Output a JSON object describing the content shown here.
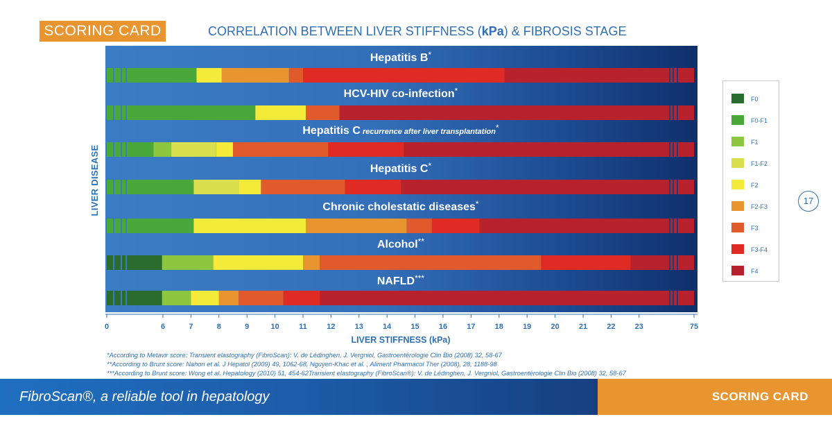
{
  "header": {
    "tag": "SCORING CARD",
    "title_prefix": "CORRELATION BETWEEN LIVER STIFFNESS (",
    "title_unit": "kPa",
    "title_suffix": ") & FIBROSIS STAGE"
  },
  "page_number": "17",
  "footnotes": [
    "*According to Metavir score: Transient elastography (FibroScan): V. de Lédinghen, J. Vergniol, Gastroentérologie Clin Bio (2008) 32, 58-67",
    "**According to Brunt score: Nahon et al. J Hepatol (2009) 49, 1062-68, Nguyen-Khac et al. , Aliment Pharmacol Ther (2008), 28, 1188-98",
    "***According to Brunt score: Wong et al. Hepatology (2010) 51, 454-62Transient elastography (FibroScan®): V. de Lédinghen, J. Vergniol, Gastroentérologie Clin Bio (2008) 32, 58-67"
  ],
  "footer": {
    "left_text": "FibroScan®, a reliable tool in hepatology",
    "right_text": "SCORING CARD"
  },
  "chart_data": {
    "type": "bar",
    "orientation": "horizontal",
    "stacked": true,
    "title": "CORRELATION BETWEEN LIVER STIFFNESS (kPa) & FIBROSIS STAGE",
    "xlabel_prefix": "LIVER STIFFNESS (",
    "xlabel_unit": "kPa",
    "xlabel_suffix": ")",
    "ylabel": "LIVER DISEASE",
    "x_ticks": [
      "0",
      "6",
      "7",
      "8",
      "9",
      "10",
      "11",
      "12",
      "13",
      "14",
      "15",
      "16",
      "17",
      "18",
      "19",
      "20",
      "21",
      "22",
      "23",
      "75"
    ],
    "x_scale": "broken axis: 0 → 6 compressed, 6–23 linear, 23 → 75 compressed",
    "xlim": [
      0,
      75
    ],
    "stages": [
      {
        "name": "F0",
        "color": "#2a6b2e"
      },
      {
        "name": "F0-F1",
        "color": "#4aa83a"
      },
      {
        "name": "F1",
        "color": "#8dc63f"
      },
      {
        "name": "F1-F2",
        "color": "#d9df4e"
      },
      {
        "name": "F2",
        "color": "#f3ea3a"
      },
      {
        "name": "F2-F3",
        "color": "#e8952f"
      },
      {
        "name": "F3",
        "color": "#e05a2b"
      },
      {
        "name": "F3-F4",
        "color": "#e02b24"
      },
      {
        "name": "F4",
        "color": "#b8222c"
      }
    ],
    "series": [
      {
        "name": "Hepatitis B",
        "marker": "*",
        "segments": [
          {
            "stage": "F0-F1",
            "from": 0,
            "to": 7.2
          },
          {
            "stage": "F2",
            "from": 7.2,
            "to": 8.1
          },
          {
            "stage": "F2-F3",
            "from": 8.1,
            "to": 10.5
          },
          {
            "stage": "F3",
            "from": 10.5,
            "to": 11
          },
          {
            "stage": "F3-F4",
            "from": 11,
            "to": 18.2
          },
          {
            "stage": "F4",
            "from": 18.2,
            "to": 75
          }
        ]
      },
      {
        "name": "HCV-HIV co-infection",
        "marker": "*",
        "segments": [
          {
            "stage": "F0-F1",
            "from": 0,
            "to": 9.3
          },
          {
            "stage": "F2",
            "from": 9.3,
            "to": 11.1
          },
          {
            "stage": "F3",
            "from": 11.1,
            "to": 12.3
          },
          {
            "stage": "F4",
            "from": 12.3,
            "to": 75
          }
        ]
      },
      {
        "name": "Hepatitis C",
        "subtitle": "recurrence after liver transplantation",
        "marker": "*",
        "segments": [
          {
            "stage": "F0-F1",
            "from": 0,
            "to": 5
          },
          {
            "stage": "F1",
            "from": 5,
            "to": 6.3
          },
          {
            "stage": "F1-F2",
            "from": 6.3,
            "to": 7.9
          },
          {
            "stage": "F2",
            "from": 7.9,
            "to": 8.5
          },
          {
            "stage": "F3",
            "from": 8.5,
            "to": 11.9
          },
          {
            "stage": "F3-F4",
            "from": 11.9,
            "to": 14.6
          },
          {
            "stage": "F4",
            "from": 14.6,
            "to": 75
          }
        ]
      },
      {
        "name": "Hepatitis C",
        "marker": "*",
        "segments": [
          {
            "stage": "F0-F1",
            "from": 0,
            "to": 7.1
          },
          {
            "stage": "F1-F2",
            "from": 7.1,
            "to": 8.7
          },
          {
            "stage": "F2",
            "from": 8.7,
            "to": 9.5
          },
          {
            "stage": "F3",
            "from": 9.5,
            "to": 12.5
          },
          {
            "stage": "F3-F4",
            "from": 12.5,
            "to": 14.5
          },
          {
            "stage": "F4",
            "from": 14.5,
            "to": 75
          }
        ]
      },
      {
        "name": "Chronic cholestatic diseases",
        "marker": "*",
        "segments": [
          {
            "stage": "F0-F1",
            "from": 0,
            "to": 7.1
          },
          {
            "stage": "F2",
            "from": 7.1,
            "to": 11.1
          },
          {
            "stage": "F2-F3",
            "from": 11.1,
            "to": 14.7
          },
          {
            "stage": "F3",
            "from": 14.7,
            "to": 15.6
          },
          {
            "stage": "F3-F4",
            "from": 15.6,
            "to": 17.3
          },
          {
            "stage": "F4",
            "from": 17.3,
            "to": 75
          }
        ]
      },
      {
        "name": "Alcohol",
        "marker": "**",
        "segments": [
          {
            "stage": "F0",
            "from": 0,
            "to": 5.9
          },
          {
            "stage": "F1",
            "from": 5.9,
            "to": 7.8
          },
          {
            "stage": "F2",
            "from": 7.8,
            "to": 11
          },
          {
            "stage": "F2-F3",
            "from": 11,
            "to": 11.6
          },
          {
            "stage": "F3",
            "from": 11.6,
            "to": 19.5
          },
          {
            "stage": "F3-F4",
            "from": 19.5,
            "to": 22.7
          },
          {
            "stage": "F4",
            "from": 22.7,
            "to": 75
          }
        ]
      },
      {
        "name": "NAFLD",
        "marker": "***",
        "segments": [
          {
            "stage": "F0",
            "from": 0,
            "to": 5.9
          },
          {
            "stage": "F1",
            "from": 5.9,
            "to": 7
          },
          {
            "stage": "F2",
            "from": 7,
            "to": 8
          },
          {
            "stage": "F2-F3",
            "from": 8,
            "to": 8.7
          },
          {
            "stage": "F3",
            "from": 8.7,
            "to": 10.3
          },
          {
            "stage": "F3-F4",
            "from": 10.3,
            "to": 11.6
          },
          {
            "stage": "F4",
            "from": 11.6,
            "to": 75
          }
        ]
      }
    ]
  }
}
